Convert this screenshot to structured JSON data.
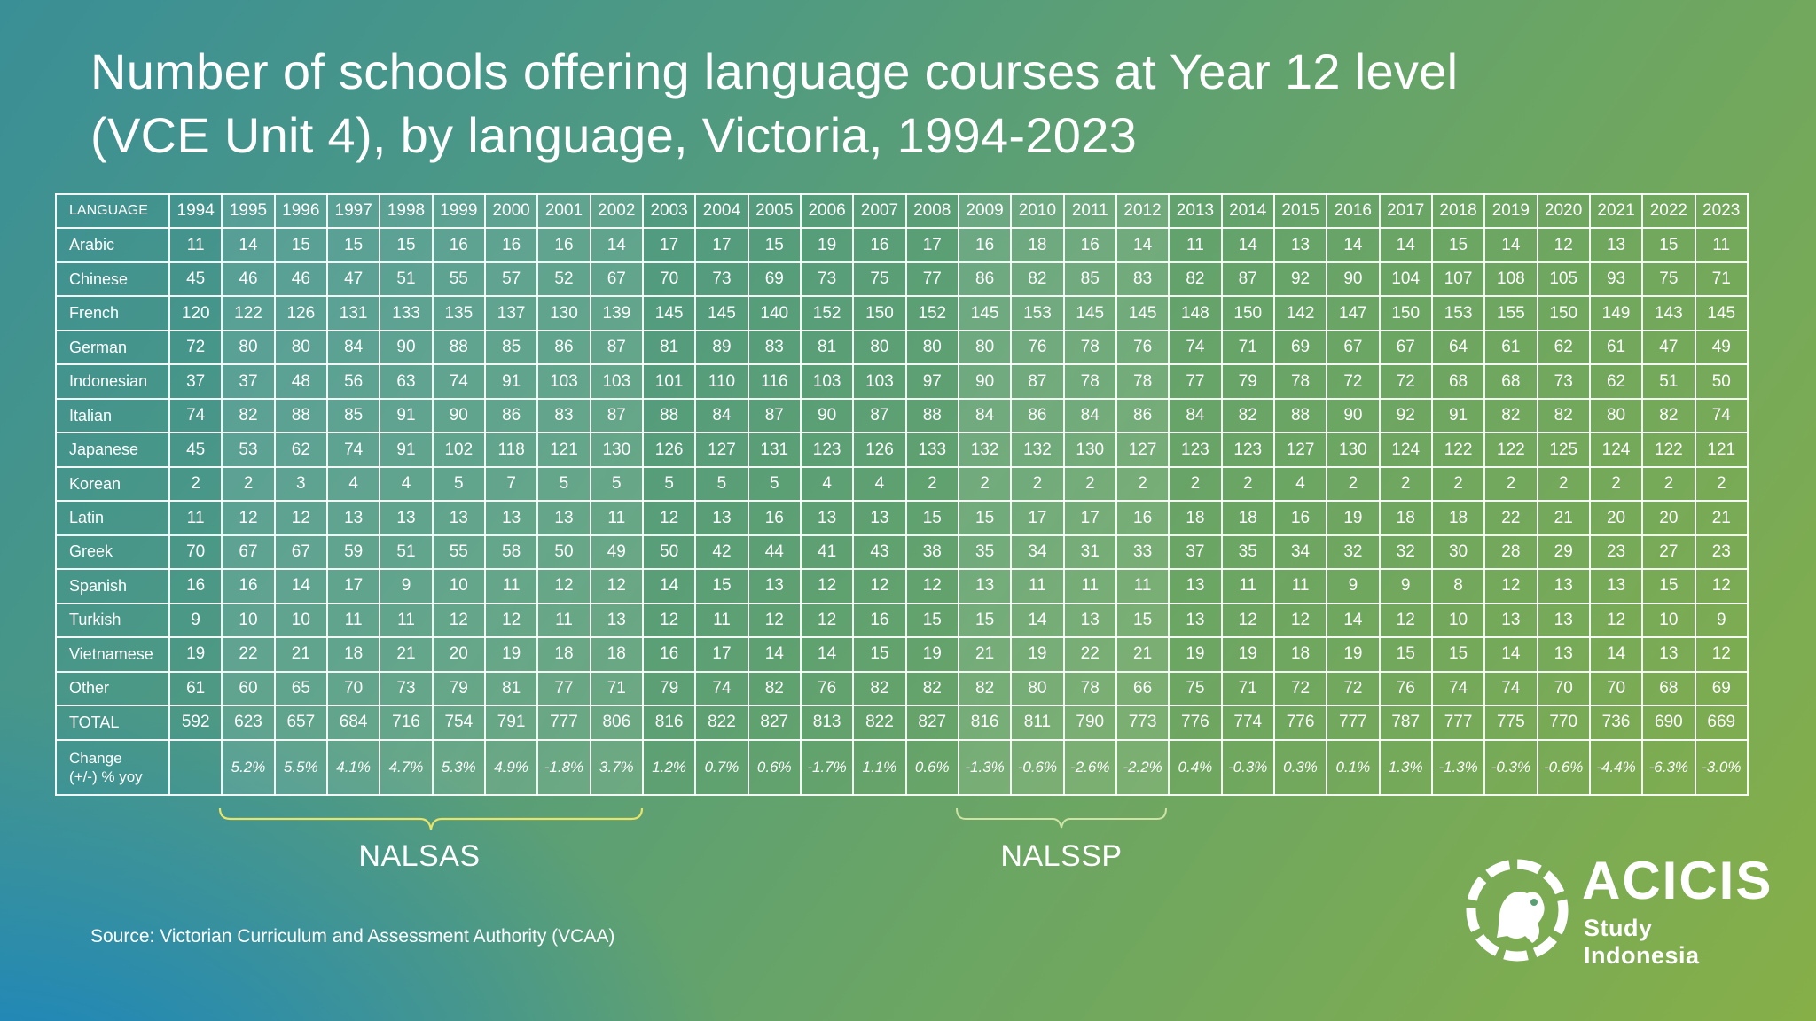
{
  "title_lines": [
    "Number of schools offering language courses at Year 12 level",
    "(VCE Unit 4), by language, Victoria, 1994-2023"
  ],
  "chart_data": {
    "type": "table",
    "header_label": "LANGUAGE",
    "years": [
      "1994",
      "1995",
      "1996",
      "1997",
      "1998",
      "1999",
      "2000",
      "2001",
      "2002",
      "2003",
      "2004",
      "2005",
      "2006",
      "2007",
      "2008",
      "2009",
      "2010",
      "2011",
      "2012",
      "2013",
      "2014",
      "2015",
      "2016",
      "2017",
      "2018",
      "2019",
      "2020",
      "2021",
      "2022",
      "2023"
    ],
    "rows": [
      {
        "label": "Arabic",
        "values": [
          11,
          14,
          15,
          15,
          15,
          16,
          16,
          16,
          14,
          17,
          17,
          15,
          19,
          16,
          17,
          16,
          18,
          16,
          14,
          11,
          14,
          13,
          14,
          14,
          15,
          14,
          12,
          13,
          15,
          11
        ]
      },
      {
        "label": "Chinese",
        "values": [
          45,
          46,
          46,
          47,
          51,
          55,
          57,
          52,
          67,
          70,
          73,
          69,
          73,
          75,
          77,
          86,
          82,
          85,
          83,
          82,
          87,
          92,
          90,
          104,
          107,
          108,
          105,
          93,
          75,
          71
        ]
      },
      {
        "label": "French",
        "values": [
          120,
          122,
          126,
          131,
          133,
          135,
          137,
          130,
          139,
          145,
          145,
          140,
          152,
          150,
          152,
          145,
          153,
          145,
          145,
          148,
          150,
          142,
          147,
          150,
          153,
          155,
          150,
          149,
          143,
          145
        ]
      },
      {
        "label": "German",
        "values": [
          72,
          80,
          80,
          84,
          90,
          88,
          85,
          86,
          87,
          81,
          89,
          83,
          81,
          80,
          80,
          80,
          76,
          78,
          76,
          74,
          71,
          69,
          67,
          67,
          64,
          61,
          62,
          61,
          47,
          49
        ]
      },
      {
        "label": "Indonesian",
        "values": [
          37,
          37,
          48,
          56,
          63,
          74,
          91,
          103,
          103,
          101,
          110,
          116,
          103,
          103,
          97,
          90,
          87,
          78,
          78,
          77,
          79,
          78,
          72,
          72,
          68,
          68,
          73,
          62,
          51,
          50
        ]
      },
      {
        "label": "Italian",
        "values": [
          74,
          82,
          88,
          85,
          91,
          90,
          86,
          83,
          87,
          88,
          84,
          87,
          90,
          87,
          88,
          84,
          86,
          84,
          86,
          84,
          82,
          88,
          90,
          92,
          91,
          82,
          82,
          80,
          82,
          74
        ]
      },
      {
        "label": "Japanese",
        "values": [
          45,
          53,
          62,
          74,
          91,
          102,
          118,
          121,
          130,
          126,
          127,
          131,
          123,
          126,
          133,
          132,
          132,
          130,
          127,
          123,
          123,
          127,
          130,
          124,
          122,
          122,
          125,
          124,
          122,
          121
        ]
      },
      {
        "label": "Korean",
        "values": [
          2,
          2,
          3,
          4,
          4,
          5,
          7,
          5,
          5,
          5,
          5,
          5,
          4,
          4,
          2,
          2,
          2,
          2,
          2,
          2,
          2,
          4,
          2,
          2,
          2,
          2,
          2,
          2,
          2,
          2
        ]
      },
      {
        "label": "Latin",
        "values": [
          11,
          12,
          12,
          13,
          13,
          13,
          13,
          13,
          11,
          12,
          13,
          16,
          13,
          13,
          15,
          15,
          17,
          17,
          16,
          18,
          18,
          16,
          19,
          18,
          18,
          22,
          21,
          20,
          20,
          21
        ]
      },
      {
        "label": "Greek",
        "values": [
          70,
          67,
          67,
          59,
          51,
          55,
          58,
          50,
          49,
          50,
          42,
          44,
          41,
          43,
          38,
          35,
          34,
          31,
          33,
          37,
          35,
          34,
          32,
          32,
          30,
          28,
          29,
          23,
          27,
          23
        ]
      },
      {
        "label": "Spanish",
        "values": [
          16,
          16,
          14,
          17,
          9,
          10,
          11,
          12,
          12,
          14,
          15,
          13,
          12,
          12,
          12,
          13,
          11,
          11,
          11,
          13,
          11,
          11,
          9,
          9,
          8,
          12,
          13,
          13,
          15,
          12
        ]
      },
      {
        "label": "Turkish",
        "values": [
          9,
          10,
          10,
          11,
          11,
          12,
          12,
          11,
          13,
          12,
          11,
          12,
          12,
          16,
          15,
          15,
          14,
          13,
          15,
          13,
          12,
          12,
          14,
          12,
          10,
          13,
          13,
          12,
          10,
          9
        ]
      },
      {
        "label": "Vietnamese",
        "values": [
          19,
          22,
          21,
          18,
          21,
          20,
          19,
          18,
          18,
          16,
          17,
          14,
          14,
          15,
          19,
          21,
          19,
          22,
          21,
          19,
          19,
          18,
          19,
          15,
          15,
          14,
          13,
          14,
          13,
          12
        ]
      },
      {
        "label": "Other",
        "values": [
          61,
          60,
          65,
          70,
          73,
          79,
          81,
          77,
          71,
          79,
          74,
          82,
          76,
          82,
          82,
          82,
          80,
          78,
          66,
          75,
          71,
          72,
          72,
          76,
          74,
          74,
          70,
          70,
          68,
          69
        ]
      },
      {
        "label": "TOTAL",
        "values": [
          592,
          623,
          657,
          684,
          716,
          754,
          791,
          777,
          806,
          816,
          822,
          827,
          813,
          822,
          827,
          816,
          811,
          790,
          773,
          776,
          774,
          776,
          777,
          787,
          777,
          775,
          770,
          736,
          690,
          669
        ]
      }
    ],
    "change_row": {
      "label_lines": [
        "Change",
        "(+/-) % yoy"
      ],
      "values": [
        "",
        "5.2%",
        "5.5%",
        "4.1%",
        "4.7%",
        "5.3%",
        "4.9%",
        "-1.8%",
        "3.7%",
        "1.2%",
        "0.7%",
        "0.6%",
        "-1.7%",
        "1.1%",
        "0.6%",
        "-1.3%",
        "-0.6%",
        "-2.6%",
        "-2.2%",
        "0.4%",
        "-0.3%",
        "0.3%",
        "0.1%",
        "1.3%",
        "-1.3%",
        "-0.3%",
        "-0.6%",
        "-4.4%",
        "-6.3%",
        "-3.0%"
      ]
    },
    "highlight_bands": [
      {
        "label": "NALSAS",
        "from": "1995",
        "to": "2002"
      },
      {
        "label": "NALSSP",
        "from": "2009",
        "to": "2012"
      }
    ]
  },
  "brace_labels": {
    "nalsas": "NALSAS",
    "nalssp": "NALSSP"
  },
  "source": "Source: Victorian Curriculum and Assessment Authority (VCAA)",
  "logo": {
    "name": "ACICIS",
    "sub": "Study Indonesia"
  },
  "colors": {
    "text": "#ffffff",
    "brace": "#e8e36a",
    "grid": "#ffffff"
  }
}
